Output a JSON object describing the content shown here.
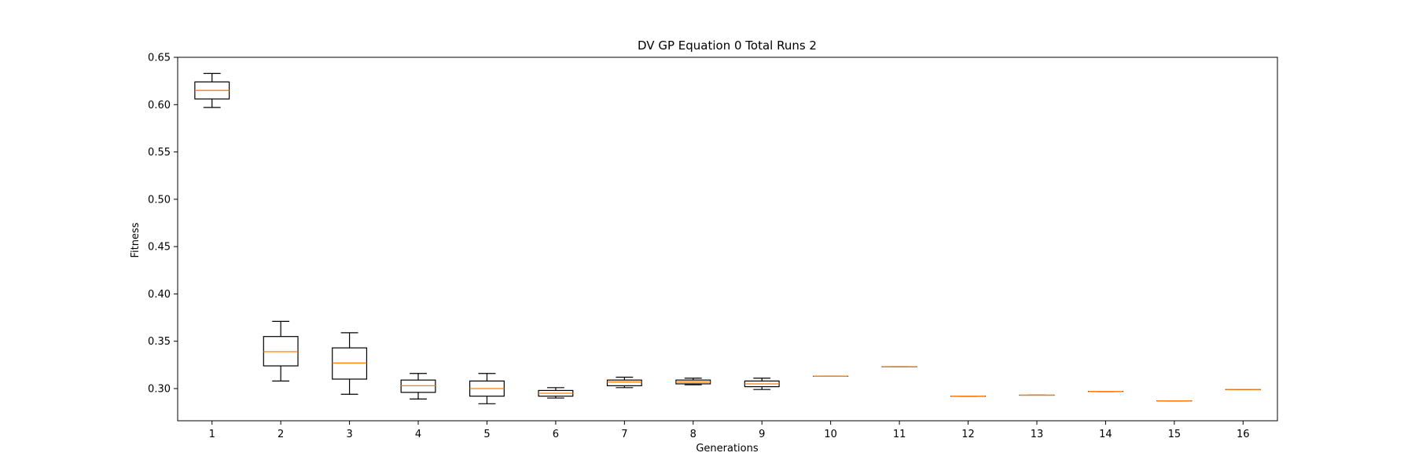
{
  "chart_data": {
    "type": "boxplot",
    "title": "DV GP Equation 0 Total Runs 2",
    "xlabel": "Generations",
    "ylabel": "Fitness",
    "ylim": [
      0.266,
      0.65
    ],
    "yticks": [
      0.3,
      0.35,
      0.4,
      0.45,
      0.5,
      0.55,
      0.6,
      0.65
    ],
    "ytick_labels": [
      "0.30",
      "0.35",
      "0.40",
      "0.45",
      "0.50",
      "0.55",
      "0.60",
      "0.65"
    ],
    "grid": false,
    "box_color": "#000000",
    "median_color": "#ff7f0e",
    "categories": [
      "1",
      "2",
      "3",
      "4",
      "5",
      "6",
      "7",
      "8",
      "9",
      "10",
      "11",
      "12",
      "13",
      "14",
      "15",
      "16"
    ],
    "boxes": [
      {
        "whislo": 0.597,
        "q1": 0.606,
        "med": 0.615,
        "q3": 0.624,
        "whishi": 0.633
      },
      {
        "whislo": 0.308,
        "q1": 0.324,
        "med": 0.339,
        "q3": 0.355,
        "whishi": 0.371
      },
      {
        "whislo": 0.294,
        "q1": 0.31,
        "med": 0.327,
        "q3": 0.343,
        "whishi": 0.359
      },
      {
        "whislo": 0.289,
        "q1": 0.296,
        "med": 0.303,
        "q3": 0.309,
        "whishi": 0.316
      },
      {
        "whislo": 0.284,
        "q1": 0.292,
        "med": 0.3,
        "q3": 0.308,
        "whishi": 0.316
      },
      {
        "whislo": 0.29,
        "q1": 0.292,
        "med": 0.295,
        "q3": 0.298,
        "whishi": 0.301
      },
      {
        "whislo": 0.301,
        "q1": 0.303,
        "med": 0.307,
        "q3": 0.309,
        "whishi": 0.312
      },
      {
        "whislo": 0.304,
        "q1": 0.305,
        "med": 0.307,
        "q3": 0.309,
        "whishi": 0.311
      },
      {
        "whislo": 0.299,
        "q1": 0.302,
        "med": 0.305,
        "q3": 0.308,
        "whishi": 0.311
      },
      {
        "whislo": 0.313,
        "q1": 0.313,
        "med": 0.313,
        "q3": 0.313,
        "whishi": 0.313
      },
      {
        "whislo": 0.323,
        "q1": 0.323,
        "med": 0.323,
        "q3": 0.323,
        "whishi": 0.323
      },
      {
        "whislo": 0.292,
        "q1": 0.292,
        "med": 0.292,
        "q3": 0.292,
        "whishi": 0.292
      },
      {
        "whislo": 0.293,
        "q1": 0.293,
        "med": 0.293,
        "q3": 0.293,
        "whishi": 0.293
      },
      {
        "whislo": 0.297,
        "q1": 0.297,
        "med": 0.297,
        "q3": 0.297,
        "whishi": 0.297
      },
      {
        "whislo": 0.287,
        "q1": 0.287,
        "med": 0.287,
        "q3": 0.287,
        "whishi": 0.287
      },
      {
        "whislo": 0.299,
        "q1": 0.299,
        "med": 0.299,
        "q3": 0.299,
        "whishi": 0.299
      }
    ]
  }
}
